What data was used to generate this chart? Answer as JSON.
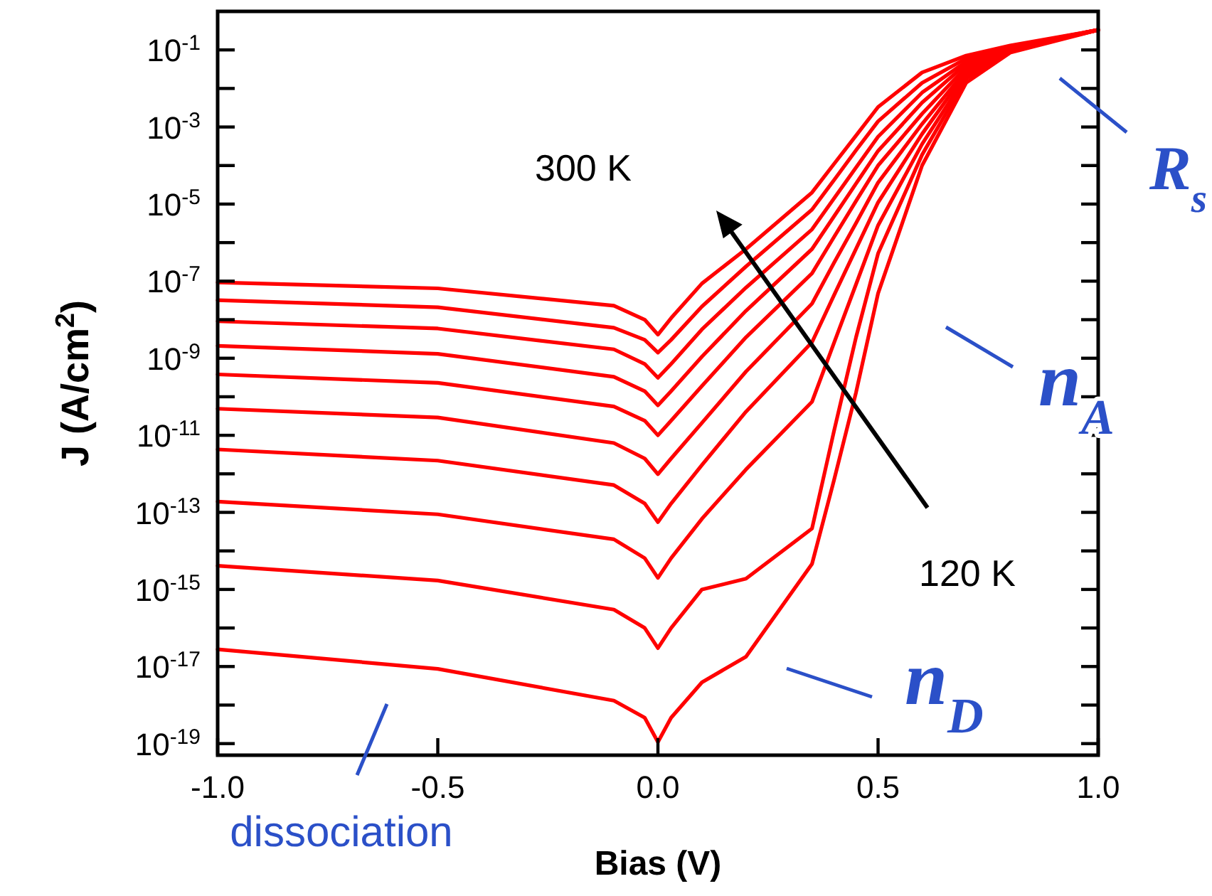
{
  "chart_data": {
    "type": "line",
    "xlabel": "Bias (V)",
    "ylabel": "J (A/cm$^{2}$)",
    "log": "y",
    "x": [
      -1,
      -0.5,
      -0.1,
      -0.03,
      0,
      0.03,
      0.1,
      0.2,
      0.35,
      0.4,
      0.45,
      0.5,
      0.6,
      0.7,
      0.8,
      1.0
    ],
    "xlim": [
      -1,
      1
    ],
    "xticks": [
      {
        "value": -1,
        "label": "-1.0"
      },
      {
        "value": -0.5,
        "label": "-0.5"
      },
      {
        "value": 0,
        "label": "0.0"
      },
      {
        "value": 0.5,
        "label": "0.5"
      },
      {
        "value": 1,
        "label": "1.0"
      }
    ],
    "ylim": [
      5e-20,
      1
    ],
    "yticks": [
      {
        "value": 1e-19,
        "label": "10$^{-19}$"
      },
      {
        "value": 1e-18,
        "label": null
      },
      {
        "value": 1e-17,
        "label": "10$^{-17}$"
      },
      {
        "value": 1e-16,
        "label": null
      },
      {
        "value": 1e-15,
        "label": "10$^{-15}$"
      },
      {
        "value": 1e-14,
        "label": null
      },
      {
        "value": 1e-13,
        "label": "10$^{-13}$"
      },
      {
        "value": 1e-12,
        "label": null
      },
      {
        "value": 1e-11,
        "label": "10$^{-11}$"
      },
      {
        "value": 1e-10,
        "label": null
      },
      {
        "value": 1e-09,
        "label": "10$^{-9}$"
      },
      {
        "value": 1e-08,
        "label": null
      },
      {
        "value": 1e-07,
        "label": "10$^{-7}$"
      },
      {
        "value": 1e-06,
        "label": null
      },
      {
        "value": 1e-05,
        "label": "10$^{-5}$"
      },
      {
        "value": 0.0001,
        "label": null
      },
      {
        "value": 0.001,
        "label": "10$^{-3}$"
      },
      {
        "value": 0.01,
        "label": null
      },
      {
        "value": 0.1,
        "label": "10$^{-1}$"
      }
    ],
    "grid": false,
    "marker": "none",
    "line_style": "solid",
    "series": [
      {
        "color": "#ff0000",
        "values": [
          9.3e-08,
          6.5e-08,
          2.3e-08,
          1e-08,
          4.1e-09,
          1.1e-08,
          8.7e-08,
          6.8e-07,
          2e-05,
          0.00011,
          0.0006,
          0.0033,
          0.026,
          0.071,
          0.13,
          0.33
        ]
      },
      {
        "color": "#ff0000",
        "values": [
          3.2e-08,
          2.1e-08,
          6.2e-09,
          3e-09,
          1.4e-09,
          3e-09,
          2.2e-08,
          2.4e-07,
          7.2e-06,
          4.2e-05,
          0.00025,
          0.0014,
          0.014,
          0.06,
          0.12,
          0.33
        ]
      },
      {
        "color": "#ff0000",
        "values": [
          9.1e-09,
          5.9e-09,
          1.7e-09,
          7.1e-10,
          3.1e-10,
          7.1e-10,
          5.6e-09,
          6.8e-08,
          2.2e-06,
          1.4e-05,
          8.9e-05,
          0.00056,
          0.0078,
          0.05,
          0.12,
          0.33
        ]
      },
      {
        "color": "#ff0000",
        "values": [
          2.1e-09,
          1.3e-09,
          3.3e-10,
          1.4e-10,
          6e-11,
          1.4e-10,
          1.1e-09,
          1.7e-08,
          6.8e-07,
          4.8e-06,
          3.4e-05,
          0.00024,
          0.0043,
          0.043,
          0.11,
          0.33
        ]
      },
      {
        "color": "#ff0000",
        "values": [
          3.8e-10,
          2.3e-10,
          5.6e-11,
          2.4e-11,
          1e-11,
          2.4e-11,
          1.9e-10,
          3.5e-09,
          1.6e-07,
          1.4e-06,
          1.2e-05,
          0.0001,
          0.0022,
          0.036,
          0.11,
          0.33
        ]
      },
      {
        "color": "#ff0000",
        "values": [
          4.9e-11,
          2.9e-11,
          6.3e-12,
          2.5e-12,
          9.8e-13,
          2.5e-12,
          2.1e-11,
          4.5e-10,
          2.6e-08,
          3e-07,
          3.2e-06,
          3.6e-05,
          0.0012,
          0.03,
          0.11,
          0.33
        ]
      },
      {
        "color": "#ff0000",
        "values": [
          4.3e-12,
          2.2e-12,
          5.1e-13,
          1.7e-13,
          5.6e-14,
          1.7e-13,
          1.7e-12,
          4.1e-11,
          2.6e-09,
          4.3e-08,
          6.9e-07,
          1.1e-05,
          0.00066,
          0.026,
          0.1,
          0.33
        ]
      },
      {
        "color": "#ff0000",
        "values": [
          1.9e-13,
          8.9e-14,
          2e-14,
          6.5e-15,
          2e-15,
          6.5e-15,
          6.8e-14,
          1.3e-12,
          7.4e-11,
          2.5e-09,
          8.3e-08,
          2.8e-06,
          0.00036,
          0.021,
          0.098,
          0.33
        ]
      },
      {
        "color": "#ff0000",
        "values": [
          4.1e-15,
          1.7e-15,
          3e-16,
          1e-16,
          3e-17,
          1e-16,
          1e-15,
          1.9e-15,
          3.8e-14,
          1.3e-11,
          3.5e-09,
          5.2e-07,
          0.00019,
          0.018,
          0.093,
          0.33
        ]
      },
      {
        "color": "#ff0000",
        "values": [
          2.8e-17,
          8.7e-18,
          1.3e-18,
          4.7e-19,
          1.1e-19,
          4.7e-19,
          3.9e-18,
          1.8e-17,
          4.6e-15,
          6.9e-13,
          1.3e-10,
          4.8e-08,
          0.0001,
          0.014,
          0.085,
          0.33
        ]
      }
    ],
    "annotations": [
      "300 K",
      "120 K",
      "dissociation",
      "R$_{s}$",
      "n$_{A}$",
      "n$_{D}$"
    ]
  }
}
